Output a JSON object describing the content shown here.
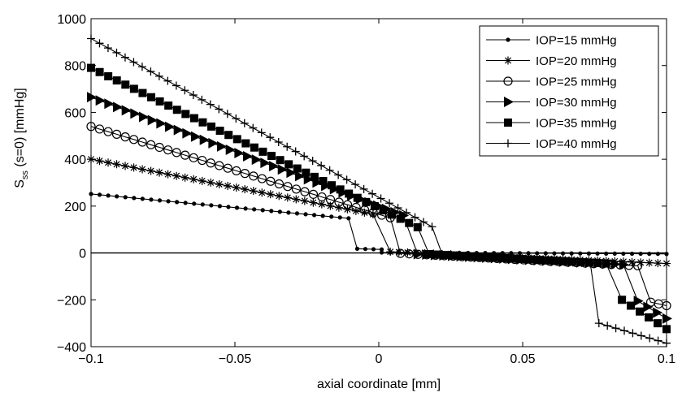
{
  "chart_data": {
    "type": "line",
    "xlabel": "axial coordinate [mm]",
    "ylabel_main": "S",
    "ylabel_sub": "ss",
    "ylabel_rest": " (s=0) [mmHg]",
    "xlim": [
      -0.1,
      0.1
    ],
    "ylim": [
      -400,
      1000
    ],
    "xticks": [
      -0.1,
      -0.05,
      0,
      0.05,
      0.1
    ],
    "xtick_labels": [
      "−0.1",
      "−0.05",
      "0",
      "0.05",
      "0.1"
    ],
    "yticks": [
      -400,
      -200,
      0,
      200,
      400,
      600,
      800,
      1000
    ],
    "ytick_labels": [
      "−400",
      "−200",
      "0",
      "200",
      "400",
      "600",
      "800",
      "1000"
    ],
    "grid": false,
    "legend_position": "top-right",
    "reference_line": {
      "y": 0,
      "color": "#000000"
    },
    "series": [
      {
        "name": "IOP=15 mmHg",
        "marker": "dot",
        "segments": [
          {
            "x0": -0.1,
            "y0": 252,
            "x1": -0.0105,
            "y1": 148
          },
          {
            "x0": -0.0075,
            "y0": 18,
            "x1": 0.001,
            "y1": 15
          },
          {
            "x0": 0.001,
            "y0": 2,
            "x1": 0.1,
            "y1": -4
          }
        ]
      },
      {
        "name": "IOP=20 mmHg",
        "marker": "star",
        "segments": [
          {
            "x0": -0.1,
            "y0": 400,
            "x1": -0.002,
            "y1": 165
          },
          {
            "x0": 0.004,
            "y0": 5,
            "x1": 0.1,
            "y1": -45
          }
        ]
      },
      {
        "name": "IOP=25 mmHg",
        "marker": "circle",
        "segments": [
          {
            "x0": -0.1,
            "y0": 540,
            "x1": 0.004,
            "y1": 150
          },
          {
            "x0": 0.0075,
            "y0": -2,
            "x1": 0.09,
            "y1": -55
          },
          {
            "x0": 0.0945,
            "y0": -210,
            "x1": 0.1,
            "y1": -225
          }
        ]
      },
      {
        "name": "IOP=30 mmHg",
        "marker": "triangle",
        "segments": [
          {
            "x0": -0.1,
            "y0": 665,
            "x1": 0.0085,
            "y1": 160
          },
          {
            "x0": 0.0135,
            "y0": -5,
            "x1": 0.085,
            "y1": -50
          },
          {
            "x0": 0.09,
            "y0": -205,
            "x1": 0.1,
            "y1": -280
          }
        ]
      },
      {
        "name": "IOP=35 mmHg",
        "marker": "square",
        "segments": [
          {
            "x0": -0.1,
            "y0": 790,
            "x1": 0.0135,
            "y1": 110
          },
          {
            "x0": 0.0175,
            "y0": -5,
            "x1": 0.079,
            "y1": -45
          },
          {
            "x0": 0.0845,
            "y0": -200,
            "x1": 0.1,
            "y1": -325
          }
        ]
      },
      {
        "name": "IOP=40 mmHg",
        "marker": "plus",
        "segments": [
          {
            "x0": -0.1,
            "y0": 915,
            "x1": 0.0185,
            "y1": 112
          },
          {
            "x0": 0.022,
            "y0": -5,
            "x1": 0.0735,
            "y1": -45
          },
          {
            "x0": 0.0765,
            "y0": -300,
            "x1": 0.1,
            "y1": -385
          }
        ]
      }
    ]
  }
}
